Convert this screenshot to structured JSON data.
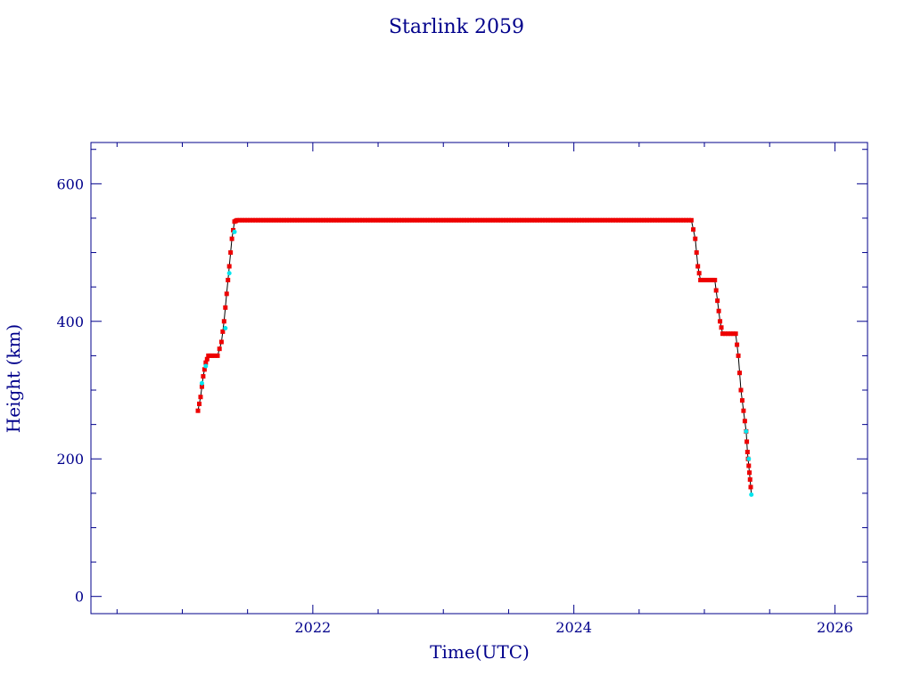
{
  "chart_data": {
    "type": "scatter",
    "title": "Starlink 2059",
    "xlabel": "Time(UTC)",
    "ylabel": "Height (km)",
    "xlim": [
      2020.3,
      2026.25
    ],
    "ylim": [
      -25,
      660
    ],
    "x_ticks": [
      2022,
      2024,
      2026
    ],
    "y_ticks": [
      0,
      200,
      400,
      600
    ],
    "grid": false,
    "colors": {
      "axis": "#00008b",
      "points": "#ee0000",
      "highlight": "#00e5ee",
      "line": "#000000"
    },
    "series": [
      {
        "x": [
          2021.12,
          2021.14,
          2021.16,
          2021.18,
          2021.2,
          2021.23,
          2021.27,
          2021.3,
          2021.32,
          2021.34,
          2021.36,
          2021.38,
          2021.4,
          2021.42,
          2021.5,
          2021.6,
          2021.8,
          2022.0,
          2022.2,
          2022.4,
          2022.6,
          2022.8,
          2023.0,
          2023.2,
          2023.4,
          2023.6,
          2023.8,
          2024.0,
          2024.2,
          2024.4,
          2024.6,
          2024.8,
          2024.9,
          2024.93,
          2024.95,
          2024.97,
          2025.0,
          2025.05,
          2025.08,
          2025.1,
          2025.12,
          2025.14,
          2025.2,
          2025.24,
          2025.26,
          2025.28,
          2025.3,
          2025.32,
          2025.33,
          2025.34,
          2025.35,
          2025.36
        ],
        "y": [
          270,
          290,
          320,
          340,
          350,
          350,
          350,
          370,
          400,
          440,
          480,
          520,
          545,
          547,
          547,
          547,
          547,
          547,
          547,
          547,
          547,
          547,
          547,
          547,
          547,
          547,
          547,
          547,
          547,
          547,
          547,
          547,
          547,
          520,
          480,
          460,
          460,
          460,
          460,
          430,
          400,
          382,
          382,
          382,
          350,
          300,
          270,
          240,
          210,
          190,
          170,
          148
        ]
      }
    ],
    "highlight_points": {
      "x": [
        2021.15,
        2021.18,
        2021.33,
        2021.36,
        2021.4,
        2025.32,
        2025.34,
        2025.36
      ],
      "y": [
        310,
        335,
        390,
        470,
        530,
        240,
        200,
        148
      ]
    }
  }
}
